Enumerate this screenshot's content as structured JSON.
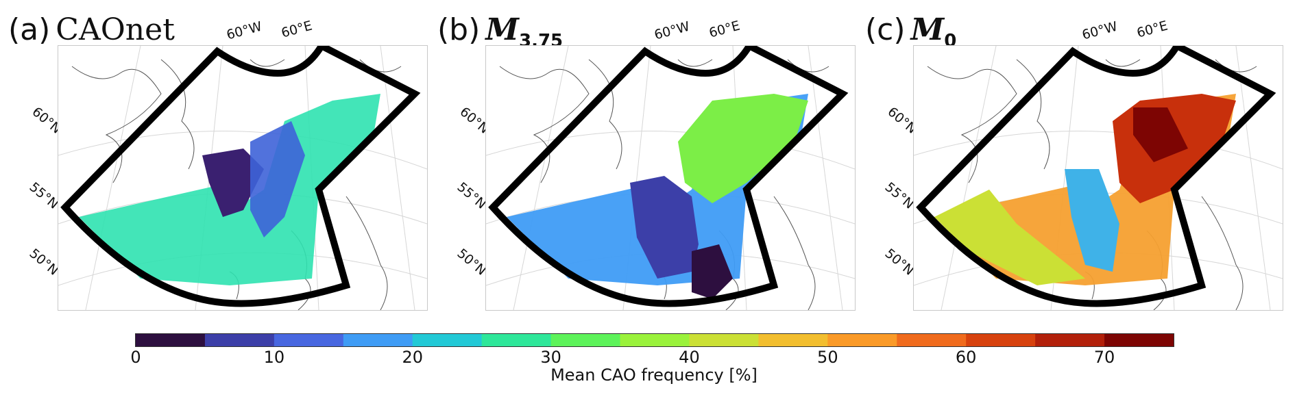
{
  "panels": [
    {
      "letter": "(a)",
      "name": "CAOnet",
      "sub": "",
      "lon": [
        "60°W",
        "60°E"
      ],
      "lat": [
        "60°N",
        "55°N",
        "50°N"
      ]
    },
    {
      "letter": "(b)",
      "name": "M",
      "sub": "3.75",
      "lon": [
        "60°W",
        "60°E"
      ],
      "lat": [
        "60°N",
        "55°N",
        "50°N"
      ]
    },
    {
      "letter": "(c)",
      "name": "M",
      "sub": "0",
      "lon": [
        "60°W",
        "60°E"
      ],
      "lat": [
        "60°N",
        "55°N",
        "50°N"
      ]
    }
  ],
  "colorbar": {
    "label": "Mean CAO frequency [%]",
    "ticks": [
      "0",
      "10",
      "20",
      "30",
      "40",
      "50",
      "60",
      "70"
    ],
    "range": [
      0,
      75
    ],
    "colors": [
      "#2d0f3f",
      "#3c3fa8",
      "#4867e0",
      "#3f9cf5",
      "#22c9d6",
      "#2ee79a",
      "#5df35a",
      "#9af23b",
      "#cbe035",
      "#f2be2f",
      "#fa9a28",
      "#f06b1d",
      "#d7420e",
      "#b2200a",
      "#7d0503"
    ]
  }
}
